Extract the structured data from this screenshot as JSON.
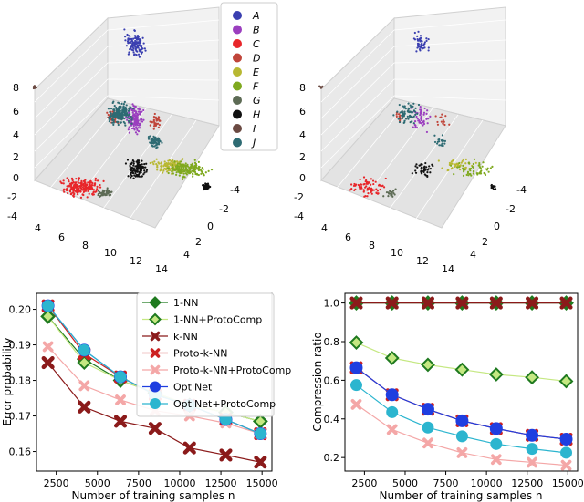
{
  "scatter3d": {
    "left": {
      "z_ticks": [
        "8",
        "6",
        "4",
        "2",
        "0",
        "-2",
        "-4"
      ],
      "x_ticks": [
        "4",
        "6",
        "8",
        "10",
        "12",
        "14"
      ],
      "y_ticks": [
        "-4",
        "-2",
        "0",
        "2",
        "4"
      ]
    },
    "right": {
      "z_ticks": [
        "8",
        "6",
        "4",
        "2",
        "0",
        "-2",
        "-4"
      ],
      "x_ticks": [
        "4",
        "6",
        "8",
        "10",
        "12",
        "14"
      ],
      "y_ticks": [
        "-4",
        "-2",
        "0",
        "2",
        "4"
      ]
    },
    "legend": [
      {
        "label": "A",
        "color": "#3a3fb0"
      },
      {
        "label": "B",
        "color": "#9b3fbf"
      },
      {
        "label": "C",
        "color": "#e8262a"
      },
      {
        "label": "D",
        "color": "#c0453a"
      },
      {
        "label": "E",
        "color": "#b8b832"
      },
      {
        "label": "F",
        "color": "#7fa91f"
      },
      {
        "label": "G",
        "color": "#5d6b55"
      },
      {
        "label": "H",
        "color": "#111111"
      },
      {
        "label": "I",
        "color": "#6b4a42"
      },
      {
        "label": "J",
        "color": "#2e6b73"
      }
    ]
  },
  "chart_data": [
    {
      "type": "line",
      "title": "",
      "xlabel": "Number of training samples n",
      "ylabel": "Error probability",
      "x": [
        2000,
        4200,
        6400,
        8500,
        10600,
        12800,
        14900
      ],
      "xticks": [
        2500,
        5000,
        7500,
        10000,
        12500,
        15000
      ],
      "xtick_labels": [
        "2500",
        "5000",
        "7500",
        "10000",
        "12500",
        "15000"
      ],
      "xlim": [
        1300,
        15600
      ],
      "ylim": [
        0.1545,
        0.2045
      ],
      "yticks": [
        0.16,
        0.17,
        0.18,
        0.19,
        0.2
      ],
      "ytick_labels": [
        "0.16",
        "0.17",
        "0.18",
        "0.19",
        "0.20"
      ],
      "legend_position": "top-right",
      "series": [
        {
          "name": "1-NN",
          "color": "#1f7a1f",
          "marker": "diamond",
          "values": [
            0.198,
            0.186,
            0.18,
            0.1765,
            0.173,
            0.171,
            0.1685
          ]
        },
        {
          "name": "1-NN+ProtoComp",
          "color": "#c5e882",
          "marker": "diamond",
          "values": [
            0.198,
            0.185,
            0.18,
            0.1765,
            0.173,
            0.171,
            0.1685
          ]
        },
        {
          "name": "k-NN",
          "color": "#8b1a1a",
          "marker": "x",
          "values": [
            0.185,
            0.1725,
            0.1685,
            0.1665,
            0.161,
            0.159,
            0.157
          ]
        },
        {
          "name": "Proto-k-NN",
          "color": "#cc2020",
          "marker": "x",
          "values": [
            0.201,
            0.1875,
            0.181,
            0.176,
            0.173,
            0.169,
            0.165
          ]
        },
        {
          "name": "Proto-k-NN+ProtoComp",
          "color": "#f4a7a7",
          "marker": "x",
          "values": [
            0.1895,
            0.1785,
            0.1745,
            0.1715,
            0.17,
            0.168,
            0.165
          ]
        },
        {
          "name": "OptiNet",
          "color": "#1f3ee0",
          "marker": "circle",
          "values": [
            0.201,
            0.1885,
            0.181,
            0.176,
            0.173,
            0.169,
            0.165
          ]
        },
        {
          "name": "OptiNet+ProtoComp",
          "color": "#2cb5cf",
          "marker": "circle",
          "values": [
            0.201,
            0.1885,
            0.181,
            0.176,
            0.173,
            0.169,
            0.165
          ]
        }
      ]
    },
    {
      "type": "line",
      "title": "",
      "xlabel": "Number of training samples n",
      "ylabel": "Compression ratio",
      "x": [
        2000,
        4200,
        6400,
        8500,
        10600,
        12800,
        14900
      ],
      "xticks": [
        2500,
        5000,
        7500,
        10000,
        12500,
        15000
      ],
      "xtick_labels": [
        "2500",
        "5000",
        "7500",
        "10000",
        "12500",
        "15000"
      ],
      "xlim": [
        1300,
        15600
      ],
      "ylim": [
        0.13,
        1.05
      ],
      "yticks": [
        0.2,
        0.4,
        0.6,
        0.8,
        1.0
      ],
      "ytick_labels": [
        "0.2",
        "0.4",
        "0.6",
        "0.8",
        "1.0"
      ],
      "series": [
        {
          "name": "1-NN",
          "color": "#1f7a1f",
          "marker": "diamond",
          "values": [
            1.0,
            1.0,
            1.0,
            1.0,
            1.0,
            1.0,
            1.0
          ]
        },
        {
          "name": "1-NN+ProtoComp",
          "color": "#c5e882",
          "marker": "diamond",
          "values": [
            0.795,
            0.715,
            0.68,
            0.655,
            0.63,
            0.615,
            0.595
          ]
        },
        {
          "name": "k-NN",
          "color": "#8b1a1a",
          "marker": "x",
          "values": [
            1.0,
            1.0,
            1.0,
            1.0,
            1.0,
            1.0,
            1.0
          ]
        },
        {
          "name": "Proto-k-NN",
          "color": "#cc2020",
          "marker": "x",
          "values": [
            0.665,
            0.525,
            0.45,
            0.39,
            0.35,
            0.315,
            0.295
          ]
        },
        {
          "name": "Proto-k-NN+ProtoComp",
          "color": "#f4a7a7",
          "marker": "x",
          "values": [
            0.475,
            0.345,
            0.275,
            0.225,
            0.19,
            0.175,
            0.16
          ]
        },
        {
          "name": "OptiNet",
          "color": "#1f3ee0",
          "marker": "circle",
          "values": [
            0.665,
            0.525,
            0.45,
            0.39,
            0.35,
            0.315,
            0.295
          ]
        },
        {
          "name": "OptiNet+ProtoComp",
          "color": "#2cb5cf",
          "marker": "circle",
          "values": [
            0.575,
            0.435,
            0.355,
            0.31,
            0.27,
            0.245,
            0.225
          ]
        }
      ]
    }
  ]
}
